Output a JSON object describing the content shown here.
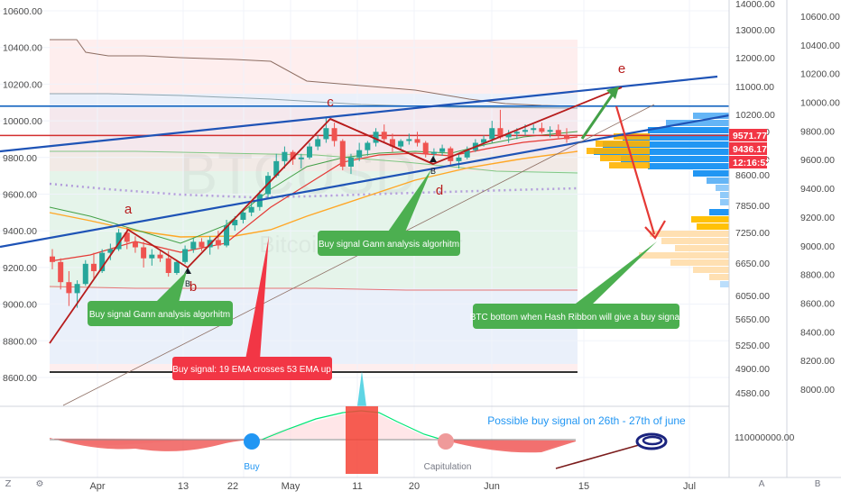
{
  "chart_data": {
    "type": "candlestick",
    "symbol_watermark": "BTCUSD",
    "symbol_subtitle": "Bitcoin / U.S. Dollar",
    "left_axis": {
      "ticks": [
        "10600.00",
        "10400.00",
        "10200.00",
        "10000.00",
        "9800.00",
        "9600.00",
        "9400.00",
        "9200.00",
        "9000.00",
        "8800.00",
        "8600.00"
      ]
    },
    "mid_axis": {
      "ticks": [
        "14000.00",
        "13000.00",
        "12000.00",
        "11000.00",
        "10200.00",
        "9800.00",
        "9600.00",
        "8600.00",
        "7850.00",
        "7250.00",
        "6650.00",
        "6050.00",
        "5650.00",
        "5250.00",
        "4900.00",
        "4580.00"
      ]
    },
    "right_axis": {
      "ticks": [
        "10600.00",
        "10400.00",
        "10200.00",
        "10000.00",
        "9800.00",
        "9600.00",
        "9400.00",
        "9200.00",
        "9000.00",
        "8800.00",
        "8600.00",
        "8400.00",
        "8200.00",
        "8000.00"
      ]
    },
    "price_tags": [
      {
        "label": "9571.77",
        "color": "#f23645"
      },
      {
        "label": "9436.17",
        "color": "#f23645"
      },
      {
        "label": "12:16:52",
        "color": "#f23645"
      }
    ],
    "x_labels": [
      "Apr",
      "13",
      "22",
      "May",
      "11",
      "20",
      "Jun",
      "15",
      "Jul"
    ],
    "wave_labels": [
      "a",
      "b",
      "c",
      "d",
      "e"
    ],
    "point_markers": [
      "B",
      "B"
    ],
    "annotations": [
      {
        "id": "gann1",
        "text": "Buy signal Gann analysis algorhitm",
        "color": "#4caf50"
      },
      {
        "id": "gann2",
        "text": "Buy signal Gann analysis algorhitm",
        "color": "#4caf50"
      },
      {
        "id": "ema",
        "text": "Buy signal: 19 EMA crosses 53 EMA up",
        "color": "#f23645"
      },
      {
        "id": "hash",
        "text": "BTC bottom when Hash Ribbon will give a buy signal",
        "color": "#4caf50"
      }
    ],
    "indicator": {
      "name": "Hash Ribbons",
      "axis_tick": "110000000.00",
      "labels": {
        "buy": "Buy",
        "capitulation": "Capitulation",
        "note": "Possible buy signal on 26th - 27th of june"
      }
    },
    "candles": [
      [
        9260,
        9300,
        9190,
        9230
      ],
      [
        9230,
        9250,
        9080,
        9120
      ],
      [
        9120,
        9180,
        8990,
        9060
      ],
      [
        9060,
        9130,
        8980,
        9110
      ],
      [
        9110,
        9240,
        9100,
        9220
      ],
      [
        9220,
        9280,
        9140,
        9180
      ],
      [
        9180,
        9300,
        9170,
        9280
      ],
      [
        9280,
        9330,
        9240,
        9300
      ],
      [
        9300,
        9410,
        9290,
        9390
      ],
      [
        9390,
        9420,
        9300,
        9340
      ],
      [
        9340,
        9370,
        9280,
        9310
      ],
      [
        9310,
        9340,
        9200,
        9250
      ],
      [
        9250,
        9300,
        9210,
        9270
      ],
      [
        9270,
        9290,
        9230,
        9250
      ],
      [
        9250,
        9290,
        9150,
        9170
      ],
      [
        9170,
        9240,
        9160,
        9230
      ],
      [
        9230,
        9320,
        9220,
        9300
      ],
      [
        9300,
        9360,
        9280,
        9340
      ],
      [
        9340,
        9360,
        9290,
        9310
      ],
      [
        9310,
        9370,
        9270,
        9350
      ],
      [
        9350,
        9400,
        9300,
        9320
      ],
      [
        9320,
        9460,
        9310,
        9430
      ],
      [
        9430,
        9480,
        9400,
        9460
      ],
      [
        9460,
        9520,
        9440,
        9500
      ],
      [
        9500,
        9560,
        9480,
        9530
      ],
      [
        9530,
        9620,
        9510,
        9600
      ],
      [
        9600,
        9720,
        9580,
        9700
      ],
      [
        9700,
        9820,
        9690,
        9780
      ],
      [
        9780,
        9860,
        9740,
        9830
      ],
      [
        9830,
        9840,
        9760,
        9790
      ],
      [
        9790,
        9820,
        9740,
        9800
      ],
      [
        9800,
        9880,
        9790,
        9860
      ],
      [
        9860,
        9920,
        9840,
        9900
      ],
      [
        9900,
        10020,
        9880,
        9960
      ],
      [
        9960,
        9990,
        9860,
        9890
      ],
      [
        9890,
        9900,
        9730,
        9750
      ],
      [
        9750,
        9820,
        9710,
        9800
      ],
      [
        9800,
        9880,
        9780,
        9840
      ],
      [
        9840,
        9890,
        9810,
        9880
      ],
      [
        9880,
        9960,
        9860,
        9940
      ],
      [
        9940,
        9980,
        9880,
        9900
      ],
      [
        9900,
        9930,
        9830,
        9860
      ],
      [
        9860,
        9900,
        9840,
        9890
      ],
      [
        9890,
        9930,
        9870,
        9900
      ],
      [
        9900,
        9940,
        9860,
        9880
      ],
      [
        9880,
        9890,
        9800,
        9820
      ],
      [
        9820,
        9850,
        9790,
        9830
      ],
      [
        9830,
        9870,
        9810,
        9850
      ],
      [
        9850,
        9860,
        9760,
        9780
      ],
      [
        9780,
        9820,
        9740,
        9800
      ],
      [
        9800,
        9860,
        9790,
        9840
      ],
      [
        9840,
        9900,
        9830,
        9880
      ],
      [
        9880,
        9920,
        9860,
        9900
      ],
      [
        9900,
        10000,
        9880,
        9960
      ],
      [
        9960,
        10060,
        9900,
        9910
      ],
      [
        9910,
        9950,
        9880,
        9930
      ],
      [
        9930,
        9960,
        9900,
        9940
      ],
      [
        9940,
        9980,
        9920,
        9950
      ],
      [
        9950,
        9980,
        9930,
        9960
      ],
      [
        9960,
        9990,
        9930,
        9940
      ],
      [
        9940,
        9970,
        9910,
        9950
      ],
      [
        9950,
        9980,
        9900,
        9920
      ],
      [
        9920,
        9960,
        9880,
        9900
      ]
    ]
  }
}
